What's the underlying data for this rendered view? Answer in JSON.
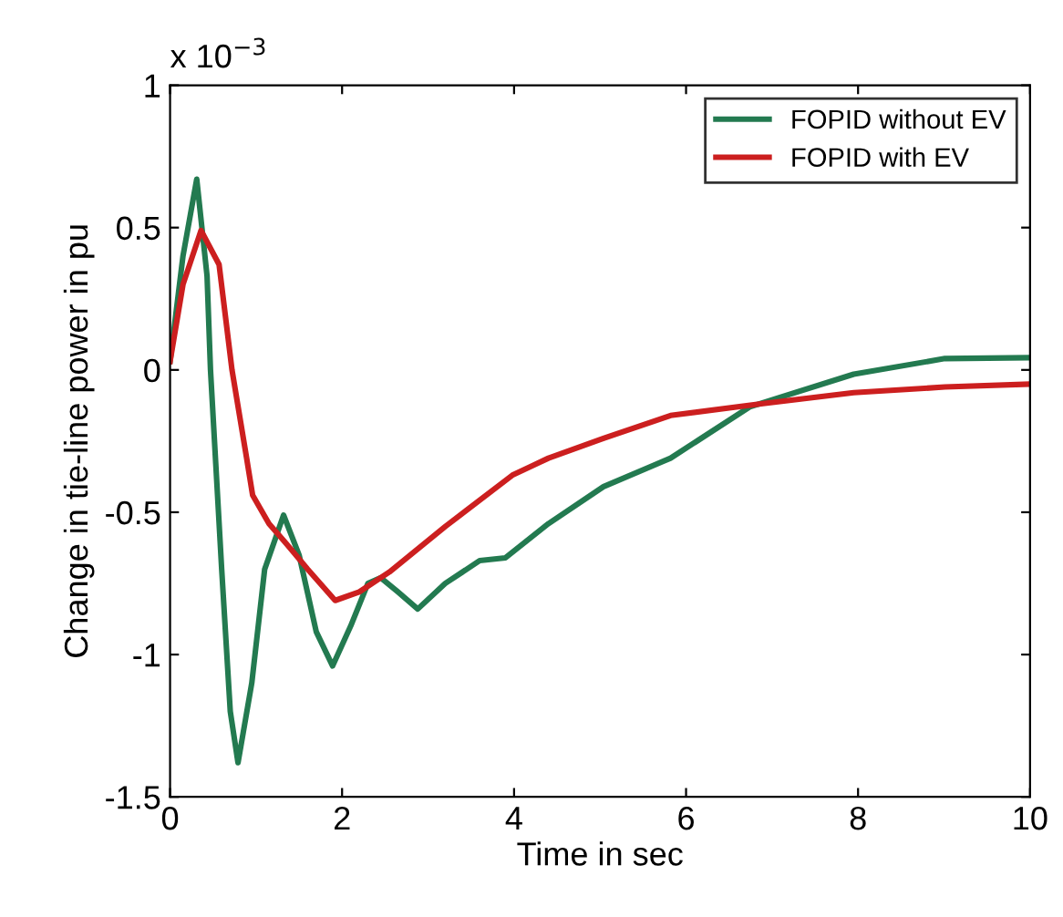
{
  "chart_data": {
    "type": "line",
    "xlabel": "Time in sec",
    "ylabel": "Change in tie-line power in pu",
    "annotations": [
      "x 10$^{−3}$"
    ],
    "xlim": [
      0,
      10
    ],
    "ylim": [
      -1.5,
      1
    ],
    "xticks": [
      0,
      2,
      4,
      6,
      8,
      10
    ],
    "yticks": [
      -1.5,
      -1,
      -0.5,
      0,
      0.5,
      1
    ],
    "grid": false,
    "legend": "top right",
    "marker": "none",
    "line_style": "solid",
    "series": [
      {
        "name": "FOPID without EV",
        "color": "#237a50",
        "x": [
          0,
          0.15,
          0.31,
          0.43,
          0.47,
          0.6,
          0.7,
          0.79,
          0.95,
          1.1,
          1.32,
          1.5,
          1.7,
          1.89,
          2.1,
          2.3,
          2.45,
          2.65,
          2.88,
          3.2,
          3.6,
          3.9,
          4.4,
          5.04,
          5.82,
          6.74,
          7.95,
          9.01,
          10
        ],
        "values": [
          0.03,
          0.4,
          0.67,
          0.33,
          0,
          -0.7,
          -1.2,
          -1.38,
          -1.1,
          -0.7,
          -0.51,
          -0.65,
          -0.92,
          -1.04,
          -0.9,
          -0.75,
          -0.73,
          -0.78,
          -0.84,
          -0.75,
          -0.67,
          -0.66,
          -0.54,
          -0.41,
          -0.31,
          -0.13,
          -0.015,
          0.04,
          0.043
        ]
      },
      {
        "name": "FOPID with EV",
        "color": "#cc1f1f",
        "x": [
          0,
          0.15,
          0.36,
          0.57,
          0.72,
          0.89,
          0.96,
          1.15,
          1.35,
          1.6,
          1.92,
          2.2,
          2.55,
          3.2,
          3.98,
          4.4,
          5.04,
          5.82,
          6.85,
          7.95,
          9.01,
          10
        ],
        "values": [
          0.03,
          0.3,
          0.49,
          0.37,
          0,
          -0.31,
          -0.44,
          -0.54,
          -0.61,
          -0.7,
          -0.81,
          -0.78,
          -0.71,
          -0.55,
          -0.37,
          -0.31,
          -0.24,
          -0.16,
          -0.12,
          -0.08,
          -0.06,
          -0.05
        ]
      }
    ]
  }
}
